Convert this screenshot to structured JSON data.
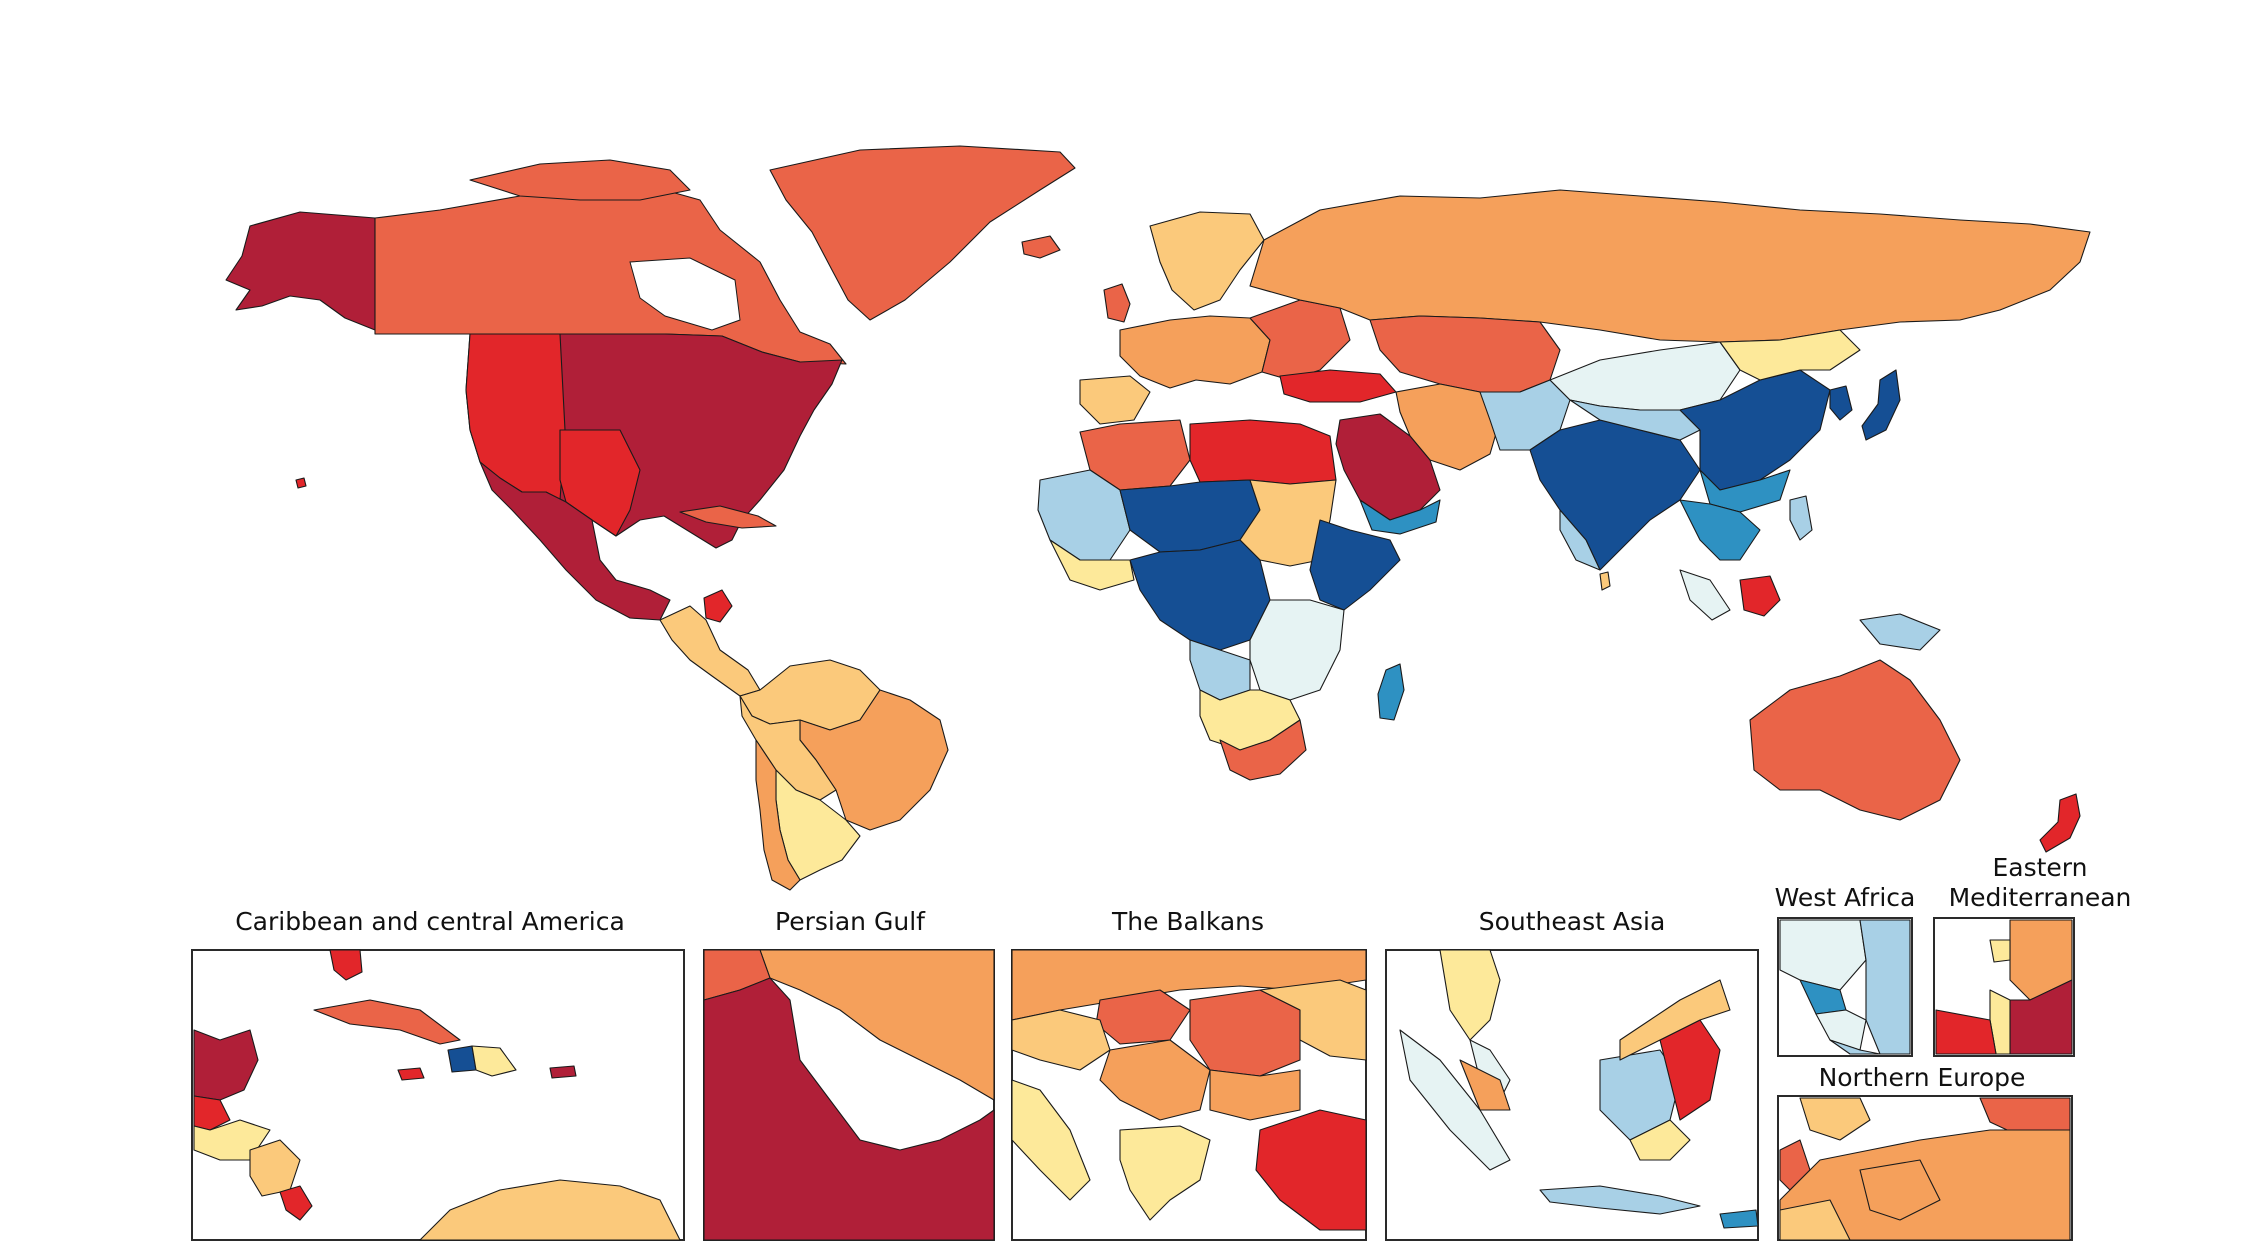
{
  "palette": {
    "dark_red": "#b01f38",
    "red": "#e2262a",
    "red_orange": "#ea6448",
    "orange": "#f5a05b",
    "light_orange": "#fbc97b",
    "yellow": "#fde99a",
    "pale_blue": "#e6f3f3",
    "light_blue": "#a8d0e6",
    "mid_blue": "#2e91c2",
    "dark_blue": "#154f94",
    "land_white": "#ffffff",
    "border": "#1a1a1a"
  },
  "insets": {
    "caribbean": {
      "title": "Caribbean and central America"
    },
    "persian_gulf": {
      "title": "Persian Gulf"
    },
    "balkans": {
      "title": "The Balkans"
    },
    "southeast_asia": {
      "title": "Southeast Asia"
    },
    "west_africa": {
      "title": "West Africa"
    },
    "eastern_med": {
      "title_line1": "Eastern",
      "title_line2": "Mediterranean"
    },
    "northern_europe": {
      "title": "Northern Europe"
    }
  }
}
